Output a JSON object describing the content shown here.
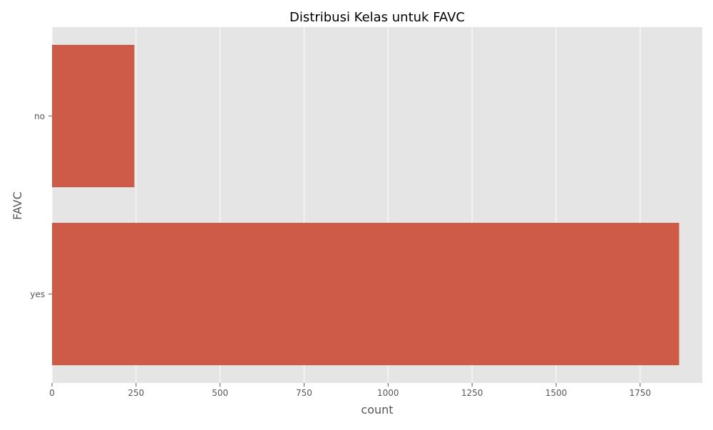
{
  "chart_data": {
    "type": "bar",
    "orientation": "horizontal",
    "title": "Distribusi Kelas untuk FAVC",
    "xlabel": "count",
    "ylabel": "FAVC",
    "categories": [
      "no",
      "yes"
    ],
    "values": [
      245,
      1866
    ],
    "xlim": [
      0,
      1935
    ],
    "xticks": [
      0,
      250,
      500,
      750,
      1000,
      1250,
      1500,
      1750
    ],
    "grid": true,
    "legend": "none",
    "style": {
      "background": "#e5e5e5",
      "bar_color": "#cd5b48",
      "grid_color": "#ffffff",
      "text_color": "#555555",
      "title_color": "#000000"
    }
  }
}
